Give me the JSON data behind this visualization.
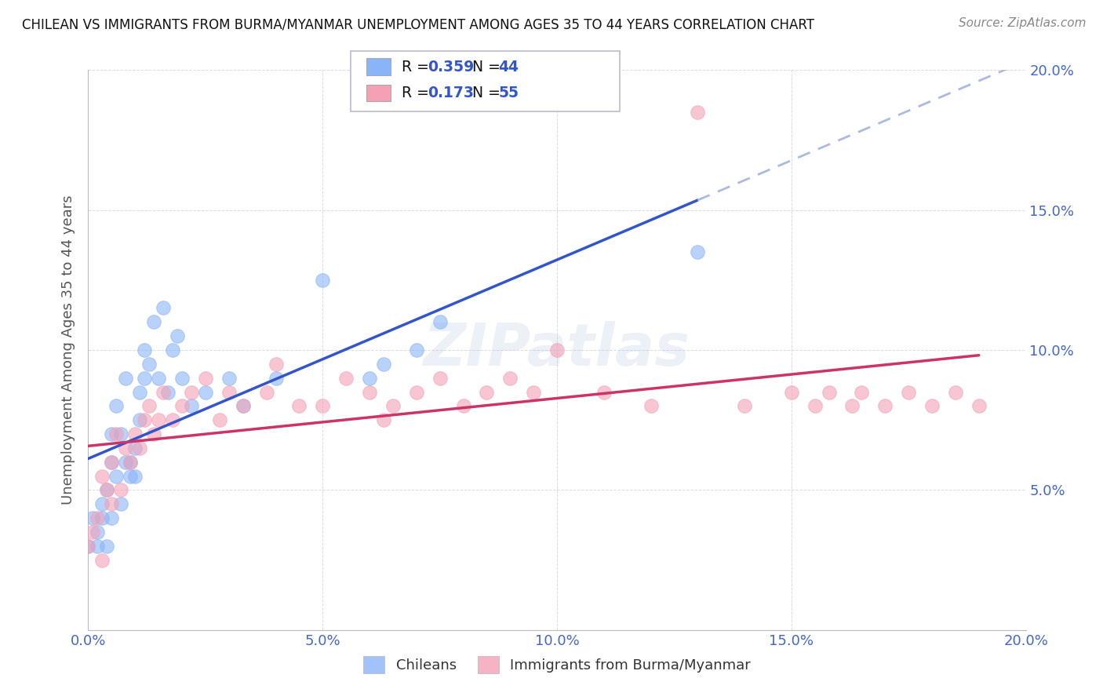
{
  "title": "CHILEAN VS IMMIGRANTS FROM BURMA/MYANMAR UNEMPLOYMENT AMONG AGES 35 TO 44 YEARS CORRELATION CHART",
  "source": "Source: ZipAtlas.com",
  "ylabel": "Unemployment Among Ages 35 to 44 years",
  "xlim": [
    0.0,
    0.2
  ],
  "ylim": [
    0.0,
    0.2
  ],
  "xticks": [
    0.0,
    0.05,
    0.1,
    0.15,
    0.2
  ],
  "yticks": [
    0.05,
    0.1,
    0.15,
    0.2
  ],
  "xticklabels": [
    "0.0%",
    "5.0%",
    "10.0%",
    "15.0%",
    "20.0%"
  ],
  "yticklabels": [
    "5.0%",
    "10.0%",
    "15.0%",
    "20.0%"
  ],
  "legend_R_N": [
    {
      "R": "0.359",
      "N": "44"
    },
    {
      "R": "0.173",
      "N": "55"
    }
  ],
  "blue_color": "#8ab4f8",
  "pink_color": "#f4a0b5",
  "blue_line_color": "#3355cc",
  "pink_line_color": "#cc3366",
  "blue_dash_color": "#aabbdd",
  "grid_color": "#cccccc",
  "background_color": "#ffffff",
  "legend_box_color": "#f0f4ff",
  "legend_border_color": "#bbbbee",
  "chilean_x": [
    0.0,
    0.001,
    0.002,
    0.002,
    0.003,
    0.003,
    0.004,
    0.004,
    0.005,
    0.005,
    0.005,
    0.006,
    0.006,
    0.007,
    0.007,
    0.008,
    0.008,
    0.009,
    0.009,
    0.01,
    0.01,
    0.011,
    0.011,
    0.012,
    0.012,
    0.013,
    0.014,
    0.015,
    0.016,
    0.017,
    0.018,
    0.019,
    0.02,
    0.022,
    0.025,
    0.03,
    0.033,
    0.04,
    0.05,
    0.06,
    0.063,
    0.07,
    0.075,
    0.13
  ],
  "chilean_y": [
    0.03,
    0.04,
    0.035,
    0.03,
    0.045,
    0.04,
    0.05,
    0.03,
    0.06,
    0.04,
    0.07,
    0.055,
    0.08,
    0.045,
    0.07,
    0.06,
    0.09,
    0.06,
    0.055,
    0.065,
    0.055,
    0.075,
    0.085,
    0.09,
    0.1,
    0.095,
    0.11,
    0.09,
    0.115,
    0.085,
    0.1,
    0.105,
    0.09,
    0.08,
    0.085,
    0.09,
    0.08,
    0.09,
    0.125,
    0.09,
    0.095,
    0.1,
    0.11,
    0.135
  ],
  "burma_x": [
    0.0,
    0.001,
    0.002,
    0.003,
    0.003,
    0.004,
    0.005,
    0.005,
    0.006,
    0.007,
    0.008,
    0.009,
    0.01,
    0.011,
    0.012,
    0.013,
    0.014,
    0.015,
    0.016,
    0.018,
    0.02,
    0.022,
    0.025,
    0.028,
    0.03,
    0.033,
    0.038,
    0.04,
    0.045,
    0.05,
    0.055,
    0.06,
    0.063,
    0.065,
    0.07,
    0.075,
    0.08,
    0.085,
    0.09,
    0.095,
    0.1,
    0.11,
    0.12,
    0.13,
    0.14,
    0.15,
    0.155,
    0.158,
    0.163,
    0.165,
    0.17,
    0.175,
    0.18,
    0.185,
    0.19
  ],
  "burma_y": [
    0.03,
    0.035,
    0.04,
    0.025,
    0.055,
    0.05,
    0.06,
    0.045,
    0.07,
    0.05,
    0.065,
    0.06,
    0.07,
    0.065,
    0.075,
    0.08,
    0.07,
    0.075,
    0.085,
    0.075,
    0.08,
    0.085,
    0.09,
    0.075,
    0.085,
    0.08,
    0.085,
    0.095,
    0.08,
    0.08,
    0.09,
    0.085,
    0.075,
    0.08,
    0.085,
    0.09,
    0.08,
    0.085,
    0.09,
    0.085,
    0.1,
    0.085,
    0.08,
    0.185,
    0.08,
    0.085,
    0.08,
    0.085,
    0.08,
    0.085,
    0.08,
    0.085,
    0.08,
    0.085,
    0.08
  ],
  "blue_line_x0": 0.0,
  "blue_line_x_solid_end": 0.13,
  "blue_line_x1": 0.2,
  "pink_line_x0": 0.0,
  "pink_line_x1": 0.19,
  "watermark_text": "ZIPatlas"
}
